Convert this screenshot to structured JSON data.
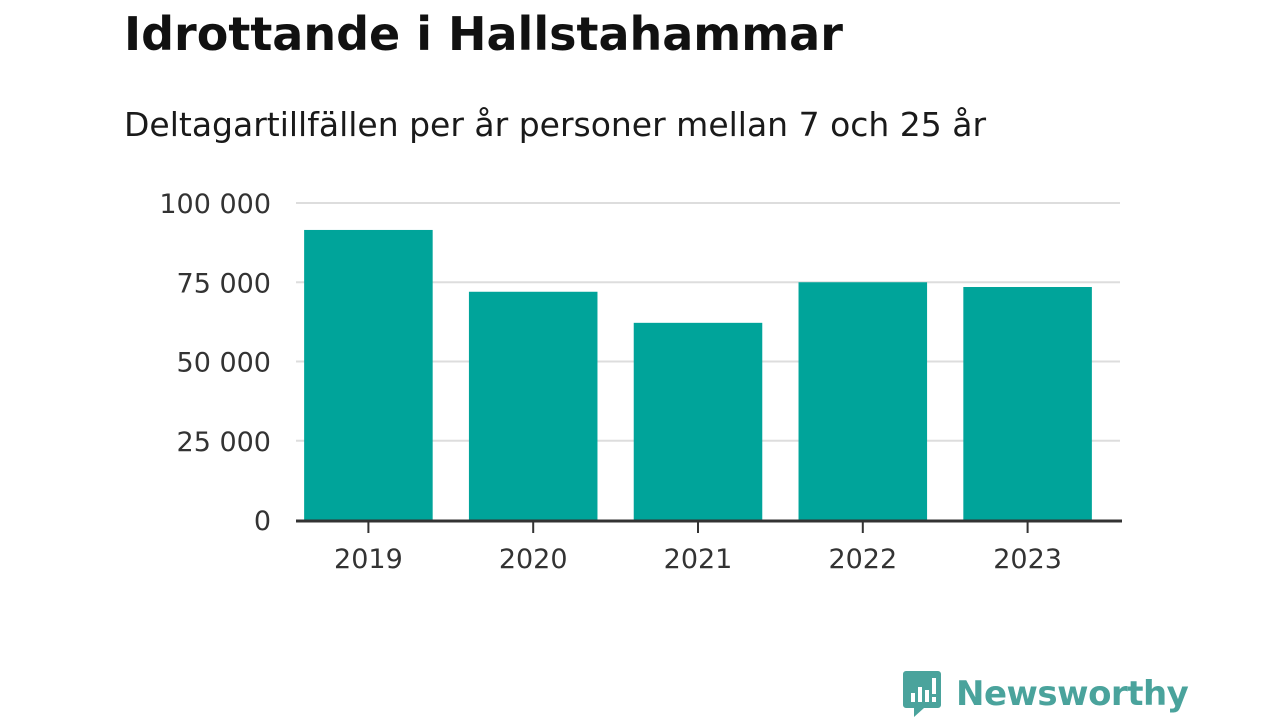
{
  "title": "Idrottande i Hallstahammar",
  "subtitle": "Deltagartillfällen per år personer mellan 7 och 25 år",
  "brand": {
    "name": "Newsworthy",
    "icon": "newsworthy-bar-chart-icon",
    "color": "#4aa39c"
  },
  "colors": {
    "bar": "#00a49a",
    "grid": "#dddddd",
    "axis": "#333333"
  },
  "chart_data": {
    "type": "bar",
    "categories": [
      "2019",
      "2020",
      "2021",
      "2022",
      "2023"
    ],
    "values": [
      91500,
      72000,
      62200,
      75000,
      73500
    ],
    "ylim": [
      0,
      100000
    ],
    "yticks": [
      0,
      25000,
      50000,
      75000,
      100000
    ],
    "ytick_labels": [
      "0",
      "25 000",
      "50 000",
      "75 000",
      "100 000"
    ],
    "grid": true
  }
}
